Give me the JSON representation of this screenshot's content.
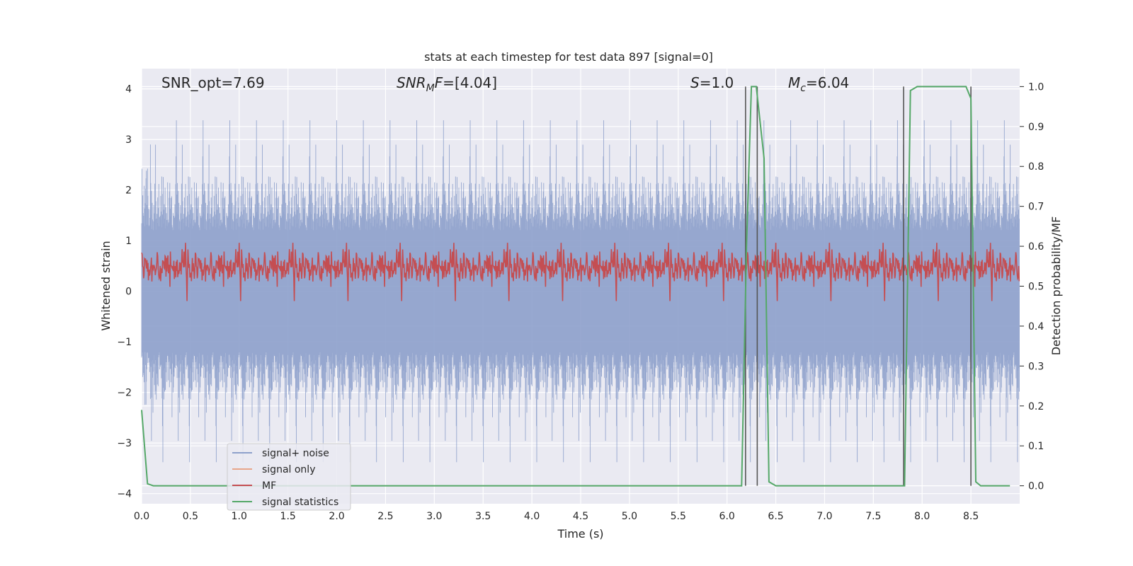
{
  "chart_data": {
    "type": "line",
    "title": "stats at each timestep for test data 897 [signal=0]",
    "xlabel": "Time (s)",
    "ylabel": "Whitened strain",
    "y2label": "Detection probability/MF",
    "xlim": [
      0.0,
      9.0
    ],
    "ylim": [
      -4.2,
      4.4
    ],
    "y2lim": [
      -0.045,
      1.045
    ],
    "x_ticks": [
      "0.0",
      "0.5",
      "1.0",
      "1.5",
      "2.0",
      "2.5",
      "3.0",
      "3.5",
      "4.0",
      "4.5",
      "5.0",
      "5.5",
      "6.0",
      "6.5",
      "7.0",
      "7.5",
      "8.0",
      "8.5"
    ],
    "y_ticks": [
      "−4",
      "−3",
      "−2",
      "−1",
      "0",
      "1",
      "2",
      "3",
      "4"
    ],
    "y2_ticks": [
      "0.0",
      "0.1",
      "0.2",
      "0.3",
      "0.4",
      "0.5",
      "0.6",
      "0.7",
      "0.8",
      "0.9",
      "1.0"
    ],
    "grid": true,
    "legend": "lower-left",
    "annotations": {
      "snr_opt": "SNR_opt=7.69",
      "snr_mf": "[4.04]",
      "s_value": "1.0",
      "mc_value": "6.04"
    },
    "series": [
      {
        "name": "signal+ noise",
        "color": "#8da0cb",
        "description_range": [
          -3.9,
          3.55
        ]
      },
      {
        "name": "signal only",
        "color": "#e8a58a",
        "values": []
      },
      {
        "name": "MF",
        "color": "#c44e52",
        "axis": "right",
        "range": [
          0.5,
          0.6
        ]
      },
      {
        "name": "signal statistics",
        "color": "#55a868",
        "axis": "right",
        "x": [
          0.0,
          0.06,
          0.12,
          0.2,
          6.15,
          6.2,
          6.25,
          6.3,
          6.38,
          6.43,
          6.5,
          7.8,
          7.82,
          7.88,
          7.95,
          8.45,
          8.5,
          8.55,
          8.6,
          8.9
        ],
        "values": [
          0.19,
          0.005,
          0.0,
          0.0,
          0.0,
          0.6,
          1.0,
          1.0,
          0.82,
          0.01,
          0.0,
          0.0,
          0.0,
          0.99,
          1.0,
          1.0,
          0.97,
          0.01,
          0.0,
          0.0
        ]
      }
    ],
    "vertical_lines": [
      6.19,
      6.31,
      7.81,
      8.5
    ]
  }
}
